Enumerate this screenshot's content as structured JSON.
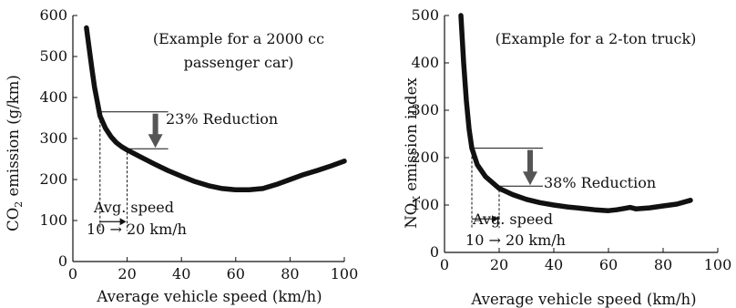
{
  "chart_data": [
    {
      "type": "line",
      "xlabel": "Average vehicle speed (km/h)",
      "ylabel_main": "CO",
      "ylabel_sub": "2",
      "ylabel_rest": " emission (g/km)",
      "xlim": [
        0,
        100
      ],
      "ylim": [
        0,
        600
      ],
      "xticks": [
        "0",
        "20",
        "40",
        "60",
        "80",
        "100"
      ],
      "yticks": [
        "0",
        "100",
        "200",
        "300",
        "400",
        "500",
        "600"
      ],
      "note_line1": "(Example for a 2000 cc",
      "note_line2": "passenger car)",
      "reduction_label": "23% Reduction",
      "speed_label_line1": "Avg. speed",
      "speed_label_line2": "10 → 20 km/h",
      "markers": {
        "x1": 10,
        "x2": 20,
        "y1": 365,
        "y2": 275
      },
      "series": [
        {
          "x": [
            5,
            6,
            7,
            8,
            9,
            10,
            12,
            14,
            16,
            18,
            20,
            25,
            30,
            35,
            40,
            45,
            50,
            55,
            60,
            65,
            70,
            75,
            80,
            85,
            90,
            95,
            100
          ],
          "y": [
            570,
            520,
            470,
            425,
            390,
            355,
            325,
            305,
            290,
            280,
            272,
            255,
            238,
            222,
            208,
            195,
            185,
            178,
            175,
            175,
            178,
            188,
            200,
            212,
            222,
            233,
            245
          ]
        }
      ]
    },
    {
      "type": "line",
      "xlabel": "Average vehicle speed (km/h)",
      "ylabel_main": "NO",
      "ylabel_sub": "X",
      "ylabel_rest": " emission index",
      "xlim": [
        0,
        100
      ],
      "ylim": [
        0,
        500
      ],
      "xticks": [
        "0",
        "20",
        "40",
        "60",
        "80",
        "100"
      ],
      "yticks": [
        "0",
        "100",
        "200",
        "300",
        "400",
        "500"
      ],
      "note_line1": "(Example for a 2-ton truck)",
      "reduction_label": "38% Reduction",
      "speed_label_line1": "Avg. speed",
      "speed_label_line2": "10 → 20 km/h",
      "markers": {
        "x1": 10,
        "x2": 20,
        "y1": 220,
        "y2": 140
      },
      "series": [
        {
          "x": [
            6,
            7,
            8,
            9,
            10,
            12,
            15,
            20,
            25,
            30,
            35,
            40,
            45,
            50,
            55,
            60,
            63,
            65,
            68,
            70,
            75,
            80,
            85,
            90
          ],
          "y": [
            500,
            400,
            320,
            260,
            220,
            185,
            160,
            135,
            122,
            112,
            105,
            100,
            96,
            93,
            90,
            88,
            90,
            92,
            95,
            92,
            94,
            98,
            102,
            110
          ]
        }
      ]
    }
  ]
}
